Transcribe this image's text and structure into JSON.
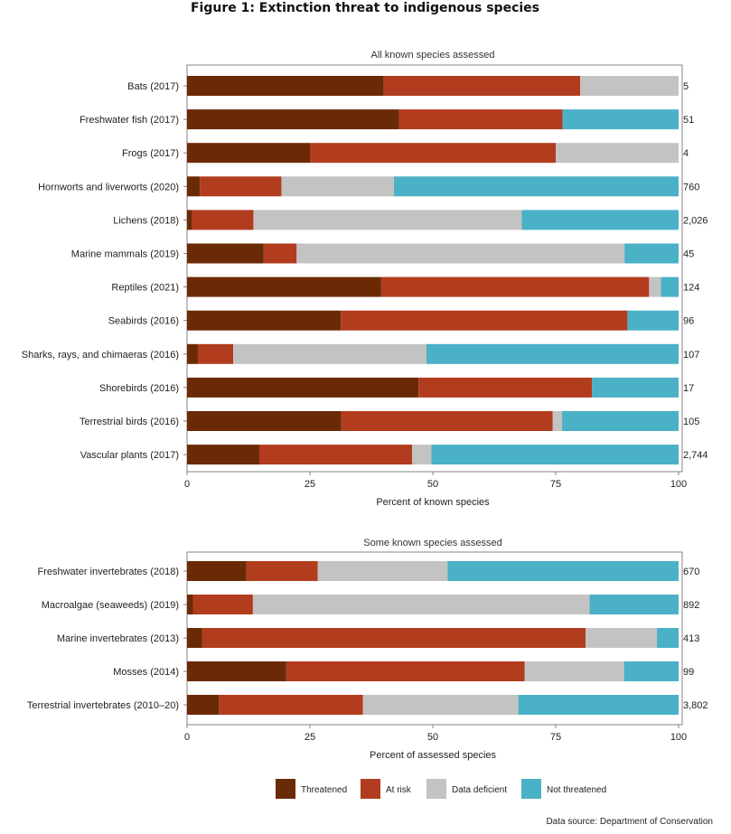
{
  "figure": {
    "title": "Figure 1: Extinction threat to indigenous species",
    "source": "Data source: Department of Conservation"
  },
  "colors": {
    "Threatened": "#6b2a06",
    "At risk": "#b23c1e",
    "Data deficient": "#c3c3c3",
    "Not threatened": "#4ab1c6"
  },
  "legend": [
    "Threatened",
    "At risk",
    "Data deficient",
    "Not threatened"
  ],
  "chart_data": [
    {
      "type": "bar",
      "orientation": "horizontal",
      "stacked": true,
      "title": "All known species assessed",
      "xlabel": "Percent of known species",
      "xlim": [
        0,
        100
      ],
      "xticks": [
        0,
        25,
        50,
        75,
        100
      ],
      "categories": [
        "Bats (2017)",
        "Freshwater fish (2017)",
        "Frogs (2017)",
        "Hornworts and liverworts (2020)",
        "Lichens (2018)",
        "Marine mammals (2019)",
        "Reptiles (2021)",
        "Seabirds (2016)",
        "Sharks, rays, and chimaeras (2016)",
        "Shorebirds (2016)",
        "Terrestrial birds (2016)",
        "Vascular plants (2017)"
      ],
      "counts": [
        "5",
        "51",
        "4",
        "760",
        "2,026",
        "45",
        "124",
        "96",
        "107",
        "17",
        "105",
        "2,744"
      ],
      "series": [
        {
          "name": "Threatened",
          "values": [
            40,
            43.1,
            25,
            2.6,
            1,
            15.6,
            39.5,
            31.3,
            2.2,
            47.1,
            31.4,
            14.7
          ]
        },
        {
          "name": "At risk",
          "values": [
            40,
            33.3,
            50,
            16.6,
            12.5,
            6.7,
            54.5,
            58.3,
            7.2,
            35.3,
            43.0,
            31.1
          ]
        },
        {
          "name": "Data deficient",
          "values": [
            20,
            0,
            25,
            22.9,
            54.6,
            66.7,
            2.4,
            0,
            39.3,
            0,
            1.9,
            3.9
          ]
        },
        {
          "name": "Not threatened",
          "values": [
            0,
            23.6,
            0,
            57.9,
            31.9,
            11.0,
            3.6,
            10.4,
            51.3,
            17.6,
            23.7,
            50.3
          ]
        }
      ]
    },
    {
      "type": "bar",
      "orientation": "horizontal",
      "stacked": true,
      "title": "Some known species assessed",
      "xlabel": "Percent of assessed species",
      "xlim": [
        0,
        100
      ],
      "xticks": [
        0,
        25,
        50,
        75,
        100
      ],
      "categories": [
        "Freshwater invertebrates (2018)",
        "Macroalgae (seaweeds) (2019)",
        "Marine invertebrates (2013)",
        "Mosses (2014)",
        "Terrestrial invertebrates (2010–20)"
      ],
      "counts": [
        "670",
        "892",
        "413",
        "99",
        "3,802"
      ],
      "series": [
        {
          "name": "Threatened",
          "values": [
            12.1,
            1.2,
            3.1,
            20.2,
            6.5
          ]
        },
        {
          "name": "At risk",
          "values": [
            14.5,
            12.2,
            78.0,
            48.5,
            29.3
          ]
        },
        {
          "name": "Data deficient",
          "values": [
            26.4,
            68.5,
            14.5,
            20.2,
            31.6
          ]
        },
        {
          "name": "Not threatened",
          "values": [
            47.0,
            18.1,
            4.4,
            11.1,
            32.6
          ]
        }
      ]
    }
  ]
}
